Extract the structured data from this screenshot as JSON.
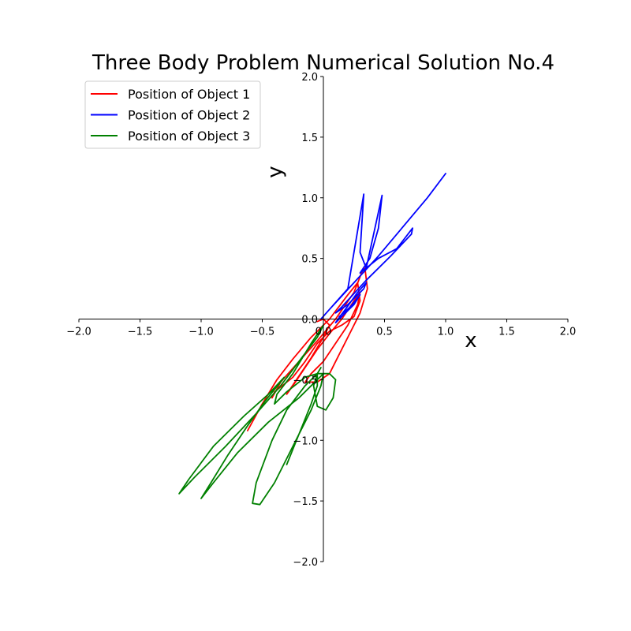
{
  "chart_data": {
    "type": "line",
    "title": "Three Body Problem Numerical Solution No.4",
    "xlabel": "x",
    "ylabel": "y",
    "xlim": [
      -2.0,
      2.0
    ],
    "ylim": [
      -2.0,
      2.0
    ],
    "xticks": [
      "−2.0",
      "−1.5",
      "−1.0",
      "−0.5",
      "0.0",
      "0.5",
      "1.0",
      "1.5",
      "2.0"
    ],
    "yticks": [
      "−2.0",
      "−1.5",
      "−1.0",
      "−0.5",
      "0.0",
      "0.5",
      "1.0",
      "1.5",
      "2.0"
    ],
    "grid": false,
    "spines": "centered at origin",
    "legend_position": "top-left",
    "series": [
      {
        "name": "Position of Object 1",
        "color": "#ff0000",
        "points": [
          [
            -0.62,
            -0.92
          ],
          [
            -0.5,
            -0.7
          ],
          [
            -0.38,
            -0.5
          ],
          [
            -0.25,
            -0.33
          ],
          [
            -0.1,
            -0.15
          ],
          [
            0.05,
            0.0
          ],
          [
            0.2,
            0.2
          ],
          [
            0.28,
            0.3
          ],
          [
            0.3,
            0.15
          ],
          [
            0.25,
            0.02
          ],
          [
            0.15,
            -0.05
          ],
          [
            0.05,
            -0.1
          ],
          [
            -0.05,
            -0.2
          ],
          [
            -0.15,
            -0.35
          ],
          [
            -0.25,
            -0.48
          ],
          [
            -0.4,
            -0.6
          ],
          [
            -0.42,
            -0.65
          ],
          [
            -0.35,
            -0.52
          ],
          [
            -0.2,
            -0.35
          ],
          [
            -0.05,
            -0.18
          ],
          [
            0.1,
            0.0
          ],
          [
            0.25,
            0.22
          ],
          [
            0.32,
            0.4
          ],
          [
            0.34,
            0.42
          ],
          [
            0.36,
            0.25
          ],
          [
            0.3,
            0.05
          ],
          [
            0.2,
            -0.15
          ],
          [
            0.1,
            -0.35
          ],
          [
            0.05,
            -0.45
          ],
          [
            -0.05,
            -0.52
          ],
          [
            -0.15,
            -0.52
          ],
          [
            -0.1,
            -0.45
          ],
          [
            0.0,
            -0.35
          ],
          [
            0.1,
            -0.2
          ],
          [
            0.2,
            -0.05
          ],
          [
            0.28,
            0.12
          ],
          [
            0.3,
            0.22
          ],
          [
            0.25,
            0.15
          ],
          [
            0.15,
            0.0
          ],
          [
            0.05,
            -0.12
          ],
          [
            -0.05,
            -0.25
          ],
          [
            -0.15,
            -0.4
          ],
          [
            -0.25,
            -0.55
          ],
          [
            -0.3,
            -0.62
          ],
          [
            -0.22,
            -0.5
          ],
          [
            -0.1,
            -0.32
          ],
          [
            0.0,
            -0.15
          ],
          [
            0.05,
            -0.05
          ],
          [
            0.0,
            0.0
          ],
          [
            -0.05,
            -0.02
          ]
        ]
      },
      {
        "name": "Position of Object 2",
        "color": "#0000ff",
        "points": [
          [
            1.0,
            1.2
          ],
          [
            0.85,
            1.0
          ],
          [
            0.65,
            0.76
          ],
          [
            0.45,
            0.52
          ],
          [
            0.25,
            0.3
          ],
          [
            0.05,
            0.08
          ],
          [
            -0.02,
            0.0
          ],
          [
            0.05,
            0.08
          ],
          [
            0.2,
            0.25
          ],
          [
            0.33,
            1.03
          ],
          [
            0.3,
            0.55
          ],
          [
            0.35,
            0.42
          ],
          [
            0.48,
            1.02
          ],
          [
            0.45,
            0.75
          ],
          [
            0.38,
            0.5
          ],
          [
            0.3,
            0.38
          ],
          [
            0.45,
            0.5
          ],
          [
            0.6,
            0.58
          ],
          [
            0.73,
            0.75
          ],
          [
            0.72,
            0.7
          ],
          [
            0.55,
            0.52
          ],
          [
            0.35,
            0.32
          ],
          [
            0.15,
            0.1
          ],
          [
            0.1,
            0.05
          ],
          [
            0.2,
            0.12
          ],
          [
            0.33,
            0.25
          ],
          [
            0.35,
            0.3
          ],
          [
            0.28,
            0.22
          ],
          [
            0.18,
            0.08
          ],
          [
            0.12,
            0.0
          ],
          [
            0.1,
            -0.03
          ],
          [
            0.15,
            0.02
          ],
          [
            0.25,
            0.12
          ],
          [
            0.3,
            0.2
          ],
          [
            0.22,
            0.1
          ],
          [
            0.13,
            0.02
          ]
        ]
      },
      {
        "name": "Position of Object 3",
        "color": "#008000",
        "points": [
          [
            -0.3,
            -1.2
          ],
          [
            -0.2,
            -0.95
          ],
          [
            -0.1,
            -0.7
          ],
          [
            -0.05,
            -0.55
          ],
          [
            -0.05,
            -0.45
          ],
          [
            -0.15,
            -0.55
          ],
          [
            -0.3,
            -0.75
          ],
          [
            -0.42,
            -1.0
          ],
          [
            -0.55,
            -1.35
          ],
          [
            -0.58,
            -1.52
          ],
          [
            -0.52,
            -1.53
          ],
          [
            -0.4,
            -1.35
          ],
          [
            -0.25,
            -1.05
          ],
          [
            -0.1,
            -0.75
          ],
          [
            -0.02,
            -0.55
          ],
          [
            0.0,
            -0.45
          ],
          [
            -0.05,
            -0.5
          ],
          [
            -0.2,
            -0.65
          ],
          [
            -0.45,
            -0.85
          ],
          [
            -0.7,
            -1.1
          ],
          [
            -0.9,
            -1.35
          ],
          [
            -1.0,
            -1.48
          ],
          [
            -0.92,
            -1.35
          ],
          [
            -0.78,
            -1.12
          ],
          [
            -0.62,
            -0.88
          ],
          [
            -0.48,
            -0.68
          ],
          [
            -0.32,
            -0.48
          ],
          [
            -0.45,
            -0.62
          ],
          [
            -0.65,
            -0.8
          ],
          [
            -0.9,
            -1.05
          ],
          [
            -1.1,
            -1.32
          ],
          [
            -1.18,
            -1.44
          ],
          [
            -1.05,
            -1.3
          ],
          [
            -0.8,
            -1.05
          ],
          [
            -0.55,
            -0.78
          ],
          [
            -0.35,
            -0.55
          ],
          [
            -0.2,
            -0.35
          ],
          [
            -0.05,
            -0.15
          ],
          [
            0.0,
            -0.05
          ],
          [
            -0.1,
            -0.2
          ],
          [
            -0.25,
            -0.45
          ],
          [
            -0.38,
            -0.62
          ],
          [
            -0.4,
            -0.7
          ],
          [
            -0.3,
            -0.6
          ],
          [
            -0.15,
            -0.48
          ],
          [
            -0.05,
            -0.45
          ],
          [
            0.05,
            -0.45
          ],
          [
            0.1,
            -0.5
          ],
          [
            0.08,
            -0.65
          ],
          [
            0.02,
            -0.75
          ],
          [
            -0.05,
            -0.72
          ],
          [
            -0.08,
            -0.55
          ],
          [
            -0.05,
            -0.45
          ],
          [
            -0.02,
            -0.4
          ]
        ]
      }
    ]
  }
}
